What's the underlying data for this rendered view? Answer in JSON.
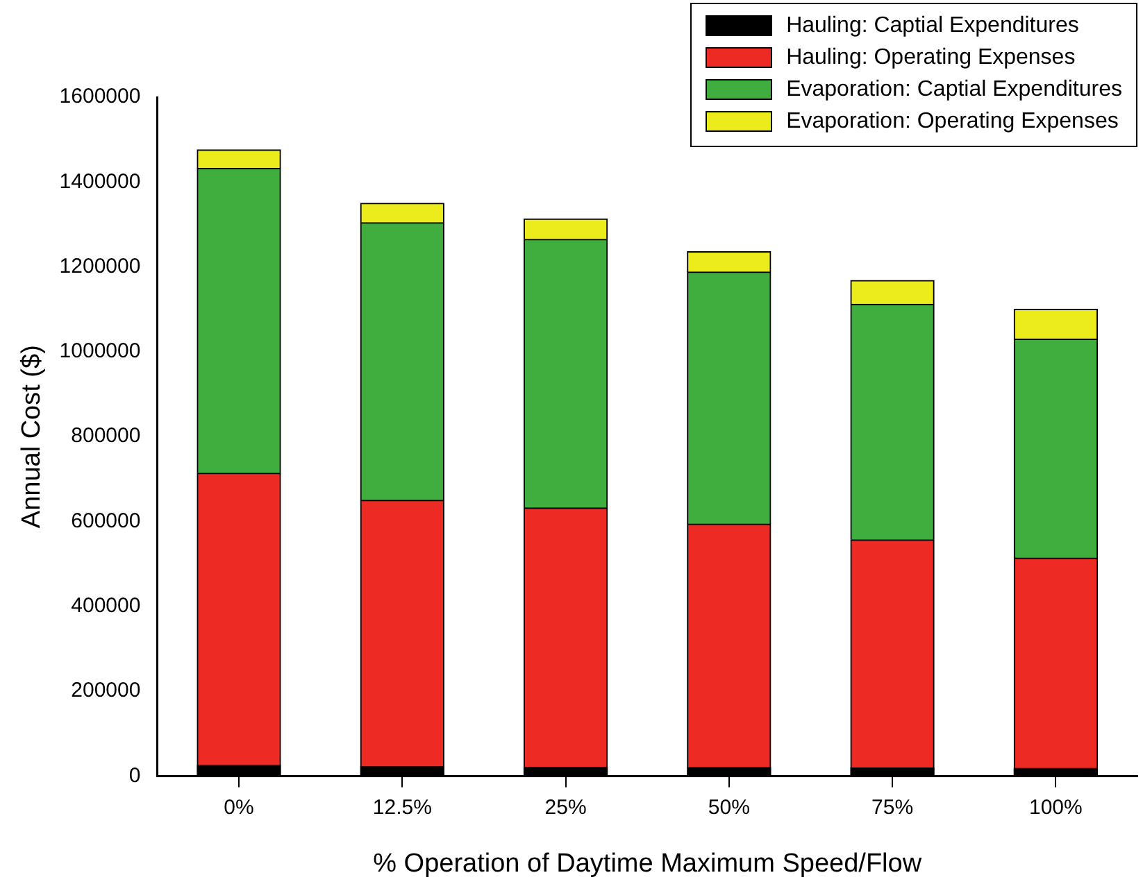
{
  "chart_data": {
    "type": "bar",
    "stacked": true,
    "xlabel": "% Operation of Daytime Maximum Speed/Flow",
    "ylabel": "Annual Cost ($)",
    "categories": [
      "0%",
      "12.5%",
      "25%",
      "50%",
      "75%",
      "100%"
    ],
    "series": [
      {
        "name": "Hauling: Captial Expenditures",
        "color": "#000000",
        "values": [
          25000,
          22000,
          21000,
          20000,
          19000,
          18000
        ]
      },
      {
        "name": "Hauling: Operating Expenses",
        "color": "#ee2a24",
        "values": [
          689000,
          628000,
          611000,
          574000,
          538000,
          496000
        ]
      },
      {
        "name": "Evaporation: Captial Expenditures",
        "color": "#3fae3f",
        "values": [
          718000,
          654000,
          633000,
          594000,
          555000,
          516000
        ]
      },
      {
        "name": "Evaporation: Operating Expenses",
        "color": "#ecec1c",
        "values": [
          44000,
          46000,
          48000,
          48000,
          56000,
          70000
        ]
      }
    ],
    "ylim": [
      0,
      1600000
    ],
    "yticks": [
      0,
      200000,
      400000,
      600000,
      800000,
      1000000,
      1200000,
      1400000,
      1600000
    ],
    "grid": false,
    "legend": "top right"
  }
}
